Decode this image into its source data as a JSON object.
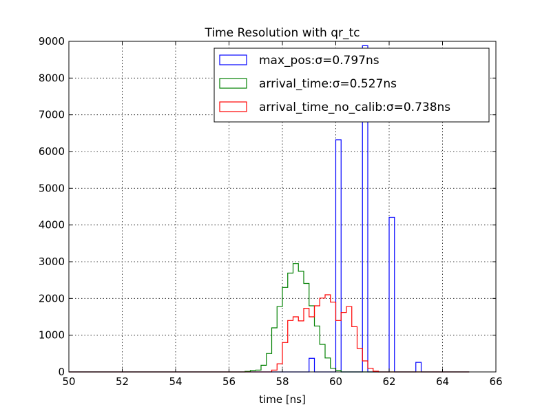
{
  "chart_data": {
    "type": "histogram",
    "title": "Time Resolution with qr_tc",
    "xlabel": "time [ns]",
    "ylabel": "",
    "xlim": [
      50,
      66
    ],
    "ylim": [
      0,
      9000
    ],
    "xticks": [
      "50",
      "52",
      "54",
      "56",
      "58",
      "60",
      "62",
      "64",
      "66"
    ],
    "yticks": [
      "0",
      "1000",
      "2000",
      "3000",
      "4000",
      "5000",
      "6000",
      "7000",
      "8000",
      "9000"
    ],
    "grid": true,
    "legend_position": "top-right",
    "bin_width": 0.2,
    "series": [
      {
        "name": "max_pos:σ=0.797ns",
        "color": "#0000ff",
        "bins": [
          {
            "x": 59.0,
            "y": 370
          },
          {
            "x": 60.0,
            "y": 6320
          },
          {
            "x": 61.0,
            "y": 8880
          },
          {
            "x": 62.0,
            "y": 4210
          },
          {
            "x": 63.0,
            "y": 260
          }
        ]
      },
      {
        "name": "arrival_time:σ=0.527ns",
        "color": "#008000",
        "bins": [
          {
            "x": 56.6,
            "y": 15
          },
          {
            "x": 56.8,
            "y": 40
          },
          {
            "x": 57.0,
            "y": 50
          },
          {
            "x": 57.2,
            "y": 180
          },
          {
            "x": 57.4,
            "y": 500
          },
          {
            "x": 57.6,
            "y": 1200
          },
          {
            "x": 57.8,
            "y": 1780
          },
          {
            "x": 58.0,
            "y": 2300
          },
          {
            "x": 58.2,
            "y": 2690
          },
          {
            "x": 58.4,
            "y": 2950
          },
          {
            "x": 58.6,
            "y": 2740
          },
          {
            "x": 58.8,
            "y": 2410
          },
          {
            "x": 59.0,
            "y": 1800
          },
          {
            "x": 59.2,
            "y": 1250
          },
          {
            "x": 59.4,
            "y": 750
          },
          {
            "x": 59.6,
            "y": 380
          },
          {
            "x": 59.8,
            "y": 100
          },
          {
            "x": 60.0,
            "y": 40
          }
        ]
      },
      {
        "name": "arrival_time_no_calib:σ=0.738ns",
        "color": "#ff0000",
        "bins": [
          {
            "x": 57.6,
            "y": 50
          },
          {
            "x": 57.8,
            "y": 220
          },
          {
            "x": 58.0,
            "y": 800
          },
          {
            "x": 58.2,
            "y": 1400
          },
          {
            "x": 58.4,
            "y": 1500
          },
          {
            "x": 58.6,
            "y": 1390
          },
          {
            "x": 58.8,
            "y": 1730
          },
          {
            "x": 59.0,
            "y": 1500
          },
          {
            "x": 59.2,
            "y": 1800
          },
          {
            "x": 59.4,
            "y": 2010
          },
          {
            "x": 59.6,
            "y": 2100
          },
          {
            "x": 59.8,
            "y": 1900
          },
          {
            "x": 60.0,
            "y": 1400
          },
          {
            "x": 60.2,
            "y": 1620
          },
          {
            "x": 60.4,
            "y": 1780
          },
          {
            "x": 60.6,
            "y": 1230
          },
          {
            "x": 60.8,
            "y": 640
          },
          {
            "x": 61.0,
            "y": 300
          },
          {
            "x": 61.2,
            "y": 100
          },
          {
            "x": 61.4,
            "y": 20
          }
        ]
      }
    ]
  }
}
